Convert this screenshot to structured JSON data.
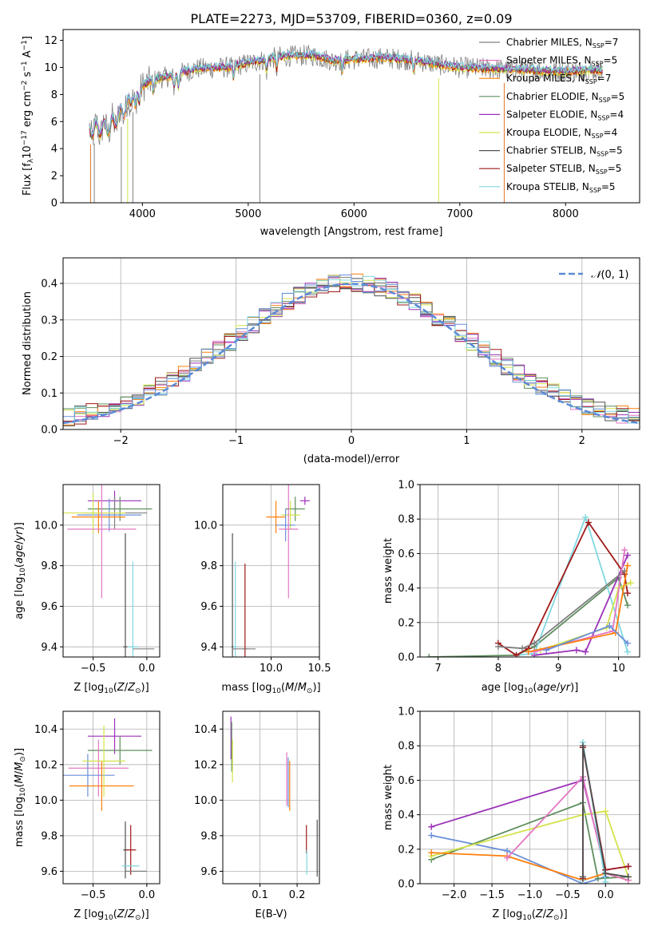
{
  "title": "PLATE=2273, MJD=53709, FIBERID=0360, z=0.09",
  "colors": {
    "Chabrier MILES": "#7f7f7f",
    "Salpeter MILES": "#e377c2",
    "Kroupa MILES": "#ff7f0e",
    "Chabrier ELODIE": "#5e8e5e",
    "Salpeter ELODIE": "#9b30b8",
    "Kroupa ELODIE": "#d4e34a",
    "Chabrier STELIB": "#505050",
    "Salpeter STELIB": "#a01818",
    "Kroupa STELIB": "#7fd8e0",
    "extra_blue": "#6a8fd8",
    "gaussian": "#5b8ad6"
  },
  "legend_ssp": [
    {
      "name": "Chabrier MILES",
      "suffix": "=7"
    },
    {
      "name": "Salpeter MILES",
      "suffix": "=5"
    },
    {
      "name": "Kroupa MILES",
      "suffix": "=7"
    },
    {
      "name": "Chabrier ELODIE",
      "suffix": "=5"
    },
    {
      "name": "Salpeter ELODIE",
      "suffix": "=4"
    },
    {
      "name": "Kroupa ELODIE",
      "suffix": "=4"
    },
    {
      "name": "Chabrier STELIB",
      "suffix": "=5"
    },
    {
      "name": "Salpeter STELIB",
      "suffix": "=5"
    },
    {
      "name": "Kroupa STELIB",
      "suffix": "=5"
    }
  ],
  "chart_data": [
    {
      "id": "spectrum",
      "type": "line",
      "xlabel": "wavelength [Angstrom, rest frame]",
      "ylabel": "Flux [f",
      "xlim": [
        3250,
        8700
      ],
      "ylim": [
        0,
        12.8
      ],
      "xticks": [
        4000,
        5000,
        6000,
        7000,
        8000
      ],
      "yticks": [
        0,
        2,
        4,
        6,
        8,
        10,
        12
      ],
      "continuum": {
        "x": [
          3500,
          3700,
          3900,
          4000,
          4100,
          4300,
          4500,
          4800,
          5000,
          5300,
          5600,
          5800,
          6000,
          6300,
          6600,
          6800,
          7000,
          7300,
          7600,
          8000,
          8300
        ],
        "y": [
          5.3,
          5.6,
          7.6,
          8.6,
          9.1,
          9.4,
          9.9,
          10.0,
          10.3,
          10.8,
          10.9,
          10.5,
          10.6,
          10.7,
          10.5,
          10.2,
          10.0,
          9.9,
          9.8,
          9.7,
          9.8
        ]
      }
    },
    {
      "id": "residuals",
      "type": "step",
      "xlabel": "(data-model)/error",
      "ylabel": "Normed distribution",
      "xlim": [
        -2.5,
        2.5
      ],
      "ylim": [
        0,
        0.47
      ],
      "xticks": [
        -2,
        -1,
        0,
        1,
        2
      ],
      "yticks": [
        0.0,
        0.1,
        0.2,
        0.3,
        0.4
      ],
      "legend": "N(0,1)"
    },
    {
      "id": "age-vs-Z",
      "type": "errorbar",
      "xlabel": "Z [log10(Z/Z☉)]",
      "ylabel": "age  [log10(age/yr)]",
      "xlim": [
        -0.78,
        0.12
      ],
      "ylim": [
        9.35,
        10.2
      ],
      "xticks": [
        -0.5,
        0.0
      ],
      "yticks": [
        9.4,
        9.6,
        9.8,
        10.0
      ],
      "points": [
        {
          "x": -0.3,
          "y": 10.12,
          "ex": 0.25,
          "ey": 0.05,
          "c": "Salpeter ELODIE"
        },
        {
          "x": -0.25,
          "y": 10.08,
          "ex": 0.3,
          "ey": 0.06,
          "c": "Chabrier ELODIE"
        },
        {
          "x": -0.3,
          "y": 10.06,
          "ex": 0.3,
          "ey": 0.08,
          "c": "Chabrier MILES"
        },
        {
          "x": -0.35,
          "y": 10.05,
          "ex": 0.3,
          "ey": 0.08,
          "c": "extra_blue"
        },
        {
          "x": -0.45,
          "y": 10.04,
          "ex": 0.25,
          "ey": 0.08,
          "c": "Kroupa MILES"
        },
        {
          "x": -0.5,
          "y": 10.06,
          "ex": 0.3,
          "ey": 0.1,
          "c": "Kroupa ELODIE"
        },
        {
          "x": -0.42,
          "y": 9.98,
          "ex": 0.32,
          "ey": 0.34,
          "c": "Salpeter MILES"
        },
        {
          "x": -0.2,
          "y": 9.4,
          "ex": 0.02,
          "ey": 0.56,
          "c": "Chabrier STELIB"
        },
        {
          "x": -0.13,
          "y": 9.4,
          "ex": 0.05,
          "ey": 0.42,
          "c": "Kroupa STELIB"
        },
        {
          "x": -0.03,
          "y": 9.39,
          "ex": 0.1,
          "ey": 0.0,
          "c": "Chabrier MILES"
        }
      ]
    },
    {
      "id": "age-vs-mass",
      "type": "errorbar",
      "xlabel": "mass [log10(M/M☉)]",
      "ylabel": "",
      "xlim": [
        9.5,
        10.5
      ],
      "ylim": [
        9.35,
        10.2
      ],
      "xticks": [
        10.0,
        10.5
      ],
      "yticks": [
        9.4,
        9.6,
        9.8,
        10.0
      ],
      "points": [
        {
          "x": 10.35,
          "y": 10.12,
          "ex": 0.05,
          "ey": 0.02,
          "c": "Salpeter ELODIE"
        },
        {
          "x": 10.25,
          "y": 10.08,
          "ex": 0.1,
          "ey": 0.06,
          "c": "Chabrier ELODIE"
        },
        {
          "x": 10.2,
          "y": 10.05,
          "ex": 0.1,
          "ey": 0.07,
          "c": "Kroupa ELODIE"
        },
        {
          "x": 10.05,
          "y": 10.04,
          "ex": 0.1,
          "ey": 0.08,
          "c": "Kroupa MILES"
        },
        {
          "x": 10.15,
          "y": 10.0,
          "ex": 0.1,
          "ey": 0.08,
          "c": "extra_blue"
        },
        {
          "x": 10.18,
          "y": 9.98,
          "ex": 0.1,
          "ey": 0.34,
          "c": "Salpeter MILES"
        },
        {
          "x": 9.6,
          "y": 9.4,
          "ex": 0.01,
          "ey": 0.56,
          "c": "Chabrier STELIB"
        },
        {
          "x": 9.63,
          "y": 9.4,
          "ex": 0.02,
          "ey": 0.42,
          "c": "Kroupa STELIB"
        },
        {
          "x": 9.73,
          "y": 9.39,
          "ex": 0.02,
          "ey": 0.42,
          "c": "Salpeter STELIB"
        },
        {
          "x": 9.72,
          "y": 9.39,
          "ex": 0.12,
          "ey": 0.0,
          "c": "Chabrier MILES"
        }
      ]
    },
    {
      "id": "massweight-vs-age",
      "type": "line",
      "xlabel": "age  [log10(age/yr)]",
      "ylabel": "mass weight",
      "xlim": [
        6.7,
        10.35
      ],
      "ylim": [
        0.0,
        1.0
      ],
      "xticks": [
        7,
        8,
        9,
        10
      ],
      "yticks": [
        0.0,
        0.2,
        0.4,
        0.6,
        0.8,
        1.0
      ],
      "series": [
        {
          "c": "Chabrier ELODIE",
          "x": [
            6.85,
            8.3,
            8.6,
            10.0,
            10.15
          ],
          "y": [
            0.0,
            0.01,
            0.06,
            0.46,
            0.3
          ]
        },
        {
          "c": "Kroupa STELIB",
          "x": [
            8.3,
            8.6,
            9.45,
            10.15
          ],
          "y": [
            0.01,
            0.02,
            0.81,
            0.03
          ]
        },
        {
          "c": "Salpeter STELIB",
          "x": [
            8.0,
            8.3,
            8.5,
            9.5,
            10.1,
            10.15
          ],
          "y": [
            0.08,
            0.01,
            0.05,
            0.78,
            0.48,
            0.37
          ]
        },
        {
          "c": "Salpeter ELODIE",
          "x": [
            8.6,
            9.3,
            9.45,
            10.15
          ],
          "y": [
            0.01,
            0.04,
            0.03,
            0.59
          ]
        },
        {
          "c": "Kroupa ELODIE",
          "x": [
            8.7,
            9.8,
            10.0,
            10.2
          ],
          "y": [
            0.04,
            0.17,
            0.4,
            0.43
          ]
        },
        {
          "c": "Chabrier MILES",
          "x": [
            8.0,
            8.4,
            8.6,
            10.1
          ],
          "y": [
            0.06,
            0.05,
            0.08,
            0.5
          ]
        },
        {
          "c": "Salpeter MILES",
          "x": [
            8.6,
            9.9,
            10.1
          ],
          "y": [
            0.03,
            0.15,
            0.62
          ]
        },
        {
          "c": "Kroupa MILES",
          "x": [
            8.5,
            9.95,
            10.15
          ],
          "y": [
            0.03,
            0.14,
            0.53
          ]
        },
        {
          "c": "extra_blue",
          "x": [
            8.8,
            9.85,
            10.15
          ],
          "y": [
            0.04,
            0.18,
            0.08
          ]
        }
      ]
    },
    {
      "id": "mass-vs-Z",
      "type": "errorbar",
      "xlabel": "Z [log10(Z/Z☉)]",
      "ylabel": "mass [log10(M/M☉)]",
      "xlim": [
        -0.78,
        0.12
      ],
      "ylim": [
        9.53,
        10.5
      ],
      "xticks": [
        -0.5,
        0.0
      ],
      "yticks": [
        9.6,
        9.8,
        10.0,
        10.2,
        10.4
      ],
      "points": [
        {
          "x": -0.3,
          "y": 10.36,
          "ex": 0.25,
          "ey": 0.1,
          "c": "Salpeter ELODIE"
        },
        {
          "x": -0.25,
          "y": 10.28,
          "ex": 0.3,
          "ey": 0.08,
          "c": "Chabrier ELODIE"
        },
        {
          "x": -0.45,
          "y": 10.18,
          "ex": 0.28,
          "ey": 0.16,
          "c": "Salpeter MILES"
        },
        {
          "x": -0.55,
          "y": 10.14,
          "ex": 0.25,
          "ey": 0.12,
          "c": "extra_blue"
        },
        {
          "x": -0.42,
          "y": 10.08,
          "ex": 0.3,
          "ey": 0.14,
          "c": "Kroupa MILES"
        },
        {
          "x": -0.4,
          "y": 10.22,
          "ex": 0.2,
          "ey": 0.2,
          "c": "Kroupa ELODIE"
        },
        {
          "x": -0.2,
          "y": 9.72,
          "ex": 0.02,
          "ey": 0.16,
          "c": "Chabrier STELIB"
        },
        {
          "x": -0.15,
          "y": 9.72,
          "ex": 0.05,
          "ey": 0.14,
          "c": "Salpeter STELIB"
        },
        {
          "x": -0.15,
          "y": 9.63,
          "ex": 0.08,
          "ey": 0.0,
          "c": "Kroupa STELIB"
        },
        {
          "x": -0.1,
          "y": 9.6,
          "ex": 0.1,
          "ey": 0.0,
          "c": "Chabrier MILES"
        }
      ]
    },
    {
      "id": "mass-vs-ebv",
      "type": "errorbar",
      "xlabel": "E(B-V)",
      "ylabel": "",
      "xlim": [
        0.0,
        0.26
      ],
      "ylim": [
        9.53,
        10.5
      ],
      "xticks": [
        0.1,
        0.2
      ],
      "yticks": [
        9.6,
        9.8,
        10.0,
        10.2,
        10.4
      ],
      "points": [
        {
          "x": 0.022,
          "y": 10.35,
          "ey": 0.12,
          "c": "Salpeter ELODIE"
        },
        {
          "x": 0.024,
          "y": 10.3,
          "ey": 0.14,
          "c": "Chabrier ELODIE"
        },
        {
          "x": 0.026,
          "y": 10.22,
          "ey": 0.12,
          "c": "Kroupa ELODIE"
        },
        {
          "x": 0.172,
          "y": 10.12,
          "ey": 0.15,
          "c": "Salpeter MILES"
        },
        {
          "x": 0.176,
          "y": 10.1,
          "ey": 0.14,
          "c": "extra_blue"
        },
        {
          "x": 0.18,
          "y": 10.08,
          "ey": 0.14,
          "c": "Kroupa MILES"
        },
        {
          "x": 0.225,
          "y": 9.78,
          "ey": 0.08,
          "c": "Salpeter STELIB"
        },
        {
          "x": 0.226,
          "y": 9.65,
          "ey": 0.07,
          "c": "Kroupa STELIB"
        },
        {
          "x": 0.254,
          "y": 9.73,
          "ey": 0.16,
          "c": "Chabrier STELIB"
        }
      ]
    },
    {
      "id": "massweight-vs-Z",
      "type": "line",
      "xlabel": "Z [log10(Z/Z☉)]",
      "ylabel": "mass weight",
      "xlim": [
        -2.45,
        0.45
      ],
      "ylim": [
        0.0,
        1.0
      ],
      "xticks": [
        -2.0,
        -1.5,
        -1.0,
        -0.5,
        0.0
      ],
      "yticks": [
        0.0,
        0.2,
        0.4,
        0.6,
        0.8,
        1.0
      ],
      "series": [
        {
          "c": "Salpeter ELODIE",
          "x": [
            -2.3,
            -0.3,
            0.0,
            0.3
          ],
          "y": [
            0.33,
            0.6,
            0.08,
            0.1
          ]
        },
        {
          "c": "extra_blue",
          "x": [
            -2.3,
            -1.3,
            -0.3,
            0.0
          ],
          "y": [
            0.28,
            0.19,
            0.0,
            0.04
          ]
        },
        {
          "c": "Chabrier ELODIE",
          "x": [
            -2.3,
            -0.3,
            -0.1,
            0.3
          ],
          "y": [
            0.14,
            0.47,
            0.03,
            0.04
          ]
        },
        {
          "c": "Kroupa ELODIE",
          "x": [
            -2.3,
            -0.3,
            0.0,
            0.3
          ],
          "y": [
            0.16,
            0.4,
            0.42,
            0.04
          ]
        },
        {
          "c": "Kroupa MILES",
          "x": [
            -2.3,
            -1.3,
            -0.3,
            0.0,
            0.3
          ],
          "y": [
            0.18,
            0.16,
            0.02,
            0.06,
            0.02
          ]
        },
        {
          "c": "Salpeter MILES",
          "x": [
            -1.3,
            -0.3,
            0.0,
            0.3
          ],
          "y": [
            0.15,
            0.62,
            0.06,
            0.02
          ]
        },
        {
          "c": "Kroupa STELIB",
          "x": [
            -0.3,
            -0.3,
            0.0
          ],
          "y": [
            0.02,
            0.82,
            0.01
          ]
        },
        {
          "c": "Salpeter STELIB",
          "x": [
            -0.3,
            -0.3,
            0.0,
            0.3
          ],
          "y": [
            0.03,
            0.79,
            0.08,
            0.1
          ]
        },
        {
          "c": "Chabrier STELIB",
          "x": [
            -0.3,
            -0.3,
            0.0,
            0.3
          ],
          "y": [
            0.04,
            0.8,
            0.06,
            0.04
          ]
        }
      ]
    }
  ]
}
